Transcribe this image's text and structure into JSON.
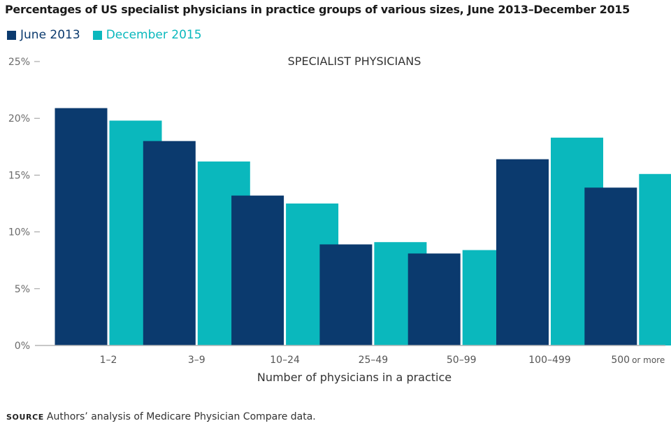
{
  "chart_data": {
    "type": "bar",
    "title": "Percentages of US specialist physicians in practice groups of various sizes, June 2013–December 2015",
    "subtitle": "SPECIALIST PHYSICIANS",
    "xlabel": "Number of physicians in a practice",
    "ylabel": "",
    "ylim": [
      0,
      25
    ],
    "yticks": [
      0,
      5,
      10,
      15,
      20,
      25
    ],
    "ytick_labels": [
      "0%",
      "5%",
      "10%",
      "15%",
      "20%",
      "25%"
    ],
    "categories": [
      "1–2",
      "3–9",
      "10–24",
      "25–49",
      "50–99",
      "100–499",
      "500 or more"
    ],
    "category_label_parts": [
      [
        "1–2",
        ""
      ],
      [
        "3–9",
        ""
      ],
      [
        "10–24",
        ""
      ],
      [
        "25–49",
        ""
      ],
      [
        "50–99",
        ""
      ],
      [
        "100–499",
        ""
      ],
      [
        "500",
        "or more"
      ]
    ],
    "series": [
      {
        "name": "June 2013",
        "color": "#0b3a6e",
        "values": [
          20.9,
          18.0,
          13.2,
          8.9,
          8.1,
          16.4,
          13.9
        ]
      },
      {
        "name": "December 2015",
        "color": "#0ab8bd",
        "values": [
          19.8,
          16.2,
          12.5,
          9.1,
          8.4,
          18.3,
          15.1
        ]
      }
    ],
    "legend_position": "top-left",
    "grid": false
  },
  "source": {
    "tag": "SOURCE",
    "text": "Authors’ analysis of Medicare Physician Compare data."
  },
  "colors": {
    "axis": "#b5b5b5",
    "tick_text": "#6b6b6b"
  }
}
